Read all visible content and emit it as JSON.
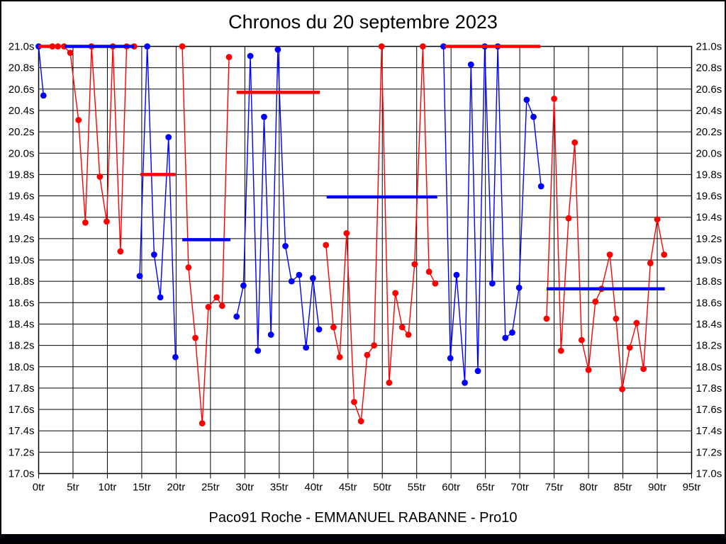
{
  "title": "Chronos du 20 septembre 2023",
  "caption": "Paco91 Roche - EMMANUEL RABANNE - Pro10",
  "chart_data": {
    "type": "line",
    "title": "Chronos du 20 septembre 2023",
    "x_unit": "tr",
    "y_unit": "s",
    "xlim": [
      0,
      95
    ],
    "ylim": [
      17.0,
      21.0
    ],
    "grid": true,
    "x_tick_values": [
      0,
      5,
      10,
      15,
      20,
      25,
      30,
      35,
      40,
      45,
      50,
      55,
      60,
      65,
      70,
      75,
      80,
      85,
      90,
      95
    ],
    "x_tick_labels": [
      "0tr",
      "5tr",
      "10tr",
      "15tr",
      "20tr",
      "25tr",
      "30tr",
      "35tr",
      "40tr",
      "45tr",
      "50tr",
      "55tr",
      "60tr",
      "65tr",
      "70tr",
      "75tr",
      "80tr",
      "85tr",
      "90tr",
      "95tr"
    ],
    "y_tick_values": [
      21.0,
      20.8,
      20.6,
      20.4,
      20.2,
      20.0,
      19.8,
      19.6,
      19.4,
      19.2,
      19.0,
      18.8,
      18.6,
      18.4,
      18.2,
      18.0,
      17.8,
      17.6,
      17.4,
      17.2,
      17.0
    ],
    "y_tick_labels": [
      "21.0s",
      "20.8s",
      "20.6s",
      "20.4s",
      "20.2s",
      "20.0s",
      "19.8s",
      "19.6s",
      "19.4s",
      "19.2s",
      "19.0s",
      "18.8s",
      "18.6s",
      "18.4s",
      "18.2s",
      "18.0s",
      "17.8s",
      "17.6s",
      "17.4s",
      "17.2s",
      "17.0s"
    ],
    "colors": {
      "red": "#ff0000",
      "blue": "#0000ff"
    },
    "series": [
      {
        "name": "series-blue",
        "color": "#0000ff",
        "segments": [
          [
            [
              0.0,
              21.0
            ],
            [
              0.7,
              20.54
            ]
          ],
          [
            [
              14.7,
              18.85
            ],
            [
              15.8,
              21.0
            ],
            [
              16.8,
              19.05
            ],
            [
              17.7,
              18.65
            ],
            [
              18.9,
              20.15
            ],
            [
              19.9,
              18.09
            ]
          ],
          [
            [
              28.8,
              18.47
            ],
            [
              29.8,
              18.76
            ],
            [
              30.8,
              20.91
            ],
            [
              31.9,
              18.15
            ],
            [
              32.8,
              20.34
            ],
            [
              33.8,
              18.3
            ],
            [
              34.8,
              20.97
            ],
            [
              35.9,
              19.13
            ],
            [
              36.8,
              18.8
            ],
            [
              37.9,
              18.86
            ],
            [
              38.9,
              18.18
            ],
            [
              39.9,
              18.83
            ],
            [
              40.8,
              18.35
            ]
          ],
          [
            [
              58.9,
              21.0
            ],
            [
              59.9,
              18.08
            ],
            [
              60.8,
              18.86
            ],
            [
              62.0,
              17.85
            ],
            [
              62.9,
              20.83
            ],
            [
              63.9,
              17.96
            ],
            [
              64.9,
              21.0
            ],
            [
              66.0,
              18.78
            ],
            [
              66.8,
              21.0
            ],
            [
              67.9,
              18.27
            ],
            [
              68.9,
              18.32
            ],
            [
              69.9,
              18.74
            ],
            [
              71.0,
              20.5
            ],
            [
              72.0,
              20.34
            ],
            [
              73.1,
              19.69
            ]
          ]
        ]
      },
      {
        "name": "series-red",
        "color": "#ff0000",
        "segments": [
          [
            [
              2.0,
              21.0
            ],
            [
              2.8,
              21.0
            ],
            [
              3.7,
              21.0
            ],
            [
              4.6,
              20.94
            ],
            [
              5.8,
              20.31
            ],
            [
              6.8,
              19.35
            ],
            [
              7.7,
              21.0
            ],
            [
              8.9,
              19.78
            ],
            [
              9.9,
              19.36
            ],
            [
              10.8,
              21.0
            ],
            [
              11.9,
              19.08
            ],
            [
              12.8,
              21.0
            ],
            [
              13.9,
              21.0
            ]
          ],
          [
            [
              20.9,
              21.0
            ],
            [
              21.8,
              18.93
            ],
            [
              22.8,
              18.27
            ],
            [
              23.8,
              17.47
            ],
            [
              24.7,
              18.56
            ],
            [
              25.9,
              18.65
            ],
            [
              26.7,
              18.57
            ],
            [
              27.7,
              20.9
            ]
          ],
          [
            [
              41.8,
              19.14
            ],
            [
              42.9,
              18.37
            ],
            [
              43.8,
              18.09
            ],
            [
              44.8,
              19.25
            ],
            [
              45.9,
              17.67
            ],
            [
              46.9,
              17.49
            ],
            [
              47.8,
              18.11
            ],
            [
              48.8,
              18.2
            ],
            [
              49.9,
              21.0
            ],
            [
              51.0,
              17.85
            ],
            [
              51.9,
              18.69
            ],
            [
              52.9,
              18.37
            ],
            [
              53.8,
              18.3
            ],
            [
              54.7,
              18.96
            ],
            [
              55.9,
              21.0
            ],
            [
              56.8,
              18.89
            ],
            [
              57.7,
              18.78
            ]
          ],
          [
            [
              73.9,
              18.45
            ],
            [
              75.0,
              20.51
            ],
            [
              76.0,
              18.15
            ],
            [
              77.1,
              19.39
            ],
            [
              78.0,
              20.1
            ],
            [
              79.0,
              18.25
            ],
            [
              80.0,
              17.97
            ],
            [
              81.0,
              18.61
            ],
            [
              81.9,
              18.73
            ],
            [
              83.1,
              19.05
            ],
            [
              84.0,
              18.45
            ],
            [
              84.9,
              17.79
            ],
            [
              86.0,
              18.18
            ],
            [
              87.0,
              18.41
            ],
            [
              88.0,
              17.98
            ],
            [
              89.0,
              18.97
            ],
            [
              90.0,
              19.38
            ],
            [
              91.0,
              19.05
            ]
          ]
        ]
      }
    ],
    "mean_lines": [
      {
        "y": 21.0,
        "x1": 0.0,
        "x2": 1.8,
        "color": "#ff0000"
      },
      {
        "y": 21.0,
        "x1": 3.8,
        "x2": 13.9,
        "color": "#0000ff"
      },
      {
        "y": 19.8,
        "x1": 14.8,
        "x2": 19.9,
        "color": "#ff0000"
      },
      {
        "y": 19.19,
        "x1": 20.9,
        "x2": 27.9,
        "color": "#0000ff"
      },
      {
        "y": 20.57,
        "x1": 28.8,
        "x2": 40.9,
        "color": "#ff0000"
      },
      {
        "y": 19.59,
        "x1": 41.9,
        "x2": 58.0,
        "color": "#0000ff"
      },
      {
        "y": 21.0,
        "x1": 59.1,
        "x2": 73.0,
        "color": "#ff0000"
      },
      {
        "y": 18.73,
        "x1": 73.9,
        "x2": 91.1,
        "color": "#0000ff"
      }
    ],
    "legend": null
  }
}
